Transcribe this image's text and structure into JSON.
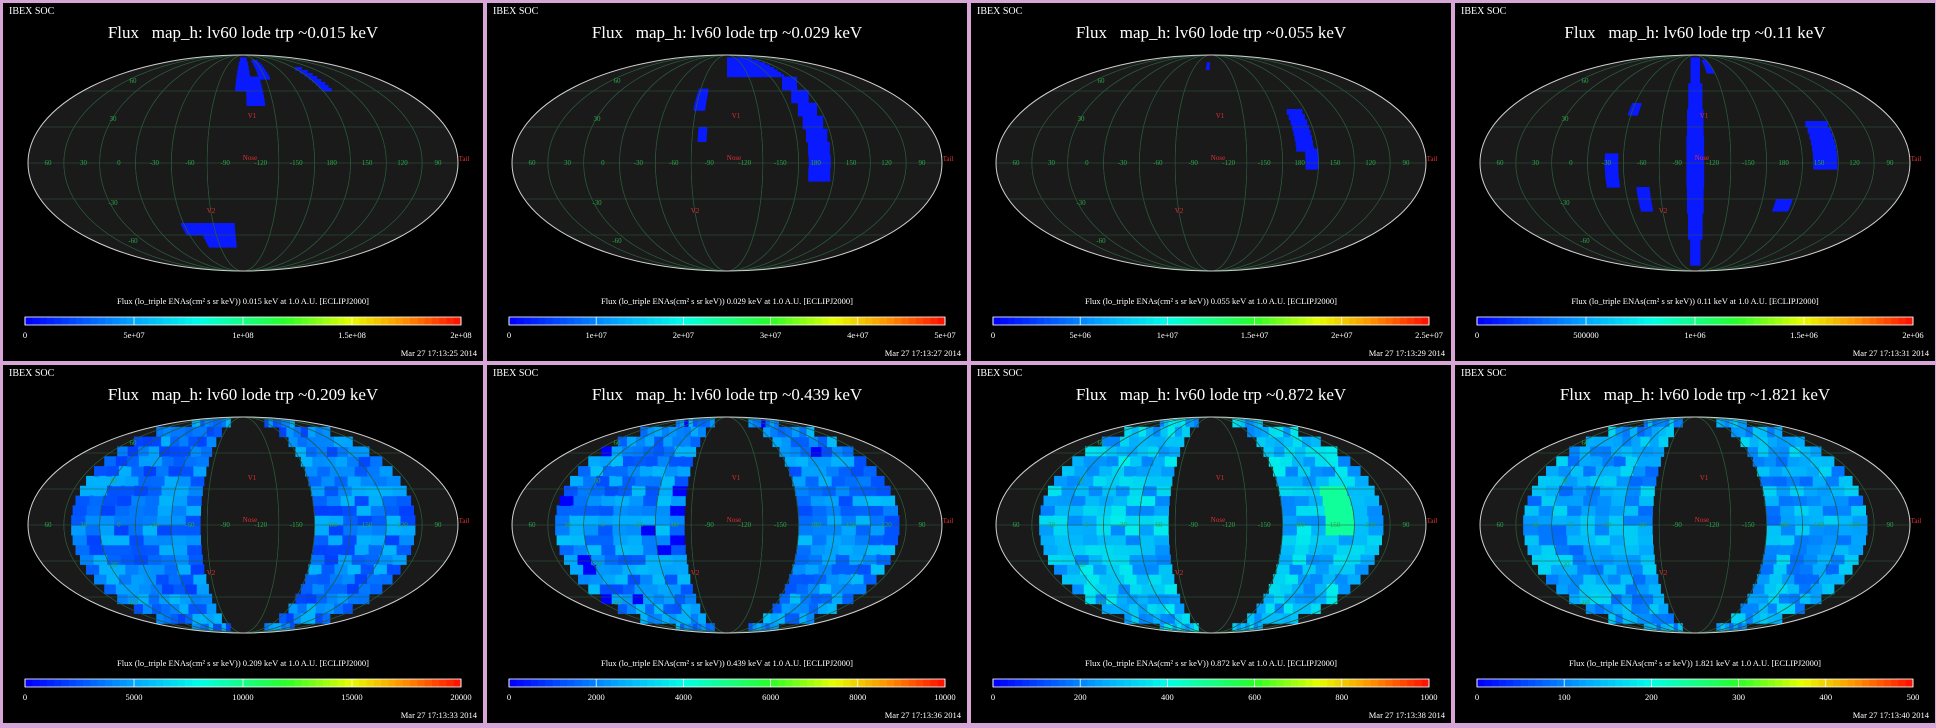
{
  "header_label": "IBEX SOC",
  "colors": {
    "panel_border": "#d7a6d6",
    "background": "#000000",
    "sky": "#1a1a1a",
    "grid": "#2b5a3c",
    "label_green": "#2aa84a",
    "label_red": "#e03030"
  },
  "map_labels": {
    "longitudes": [
      "60",
      "30",
      "0",
      "-30",
      "-60",
      "-90",
      "-120",
      "-150",
      "180",
      "150",
      "120",
      "90"
    ],
    "latitudes": [
      "60",
      "30",
      "-30",
      "-60"
    ],
    "nose": "Nose",
    "tail": "Tail",
    "v1": "V1",
    "v2": "V2"
  },
  "chart_data": [
    {
      "type": "heatmap",
      "title": "Flux   map_h: lv60 lode trp ~0.015 keV",
      "energy": "0.015 keV",
      "colorbar_label": "Flux (lo_triple ENAs(cm² s sr keV)) 0.015 keV at 1.0 A.U. [ECLIPJ2000]",
      "colorbar_range": [
        0,
        200000000.0
      ],
      "tick_labels": [
        "0",
        "5e+07",
        "1e+08",
        "1.5e+08",
        "2e+08"
      ],
      "timestamp": "Mar 27 17:13:25 2014",
      "coverage": "sparse"
    },
    {
      "type": "heatmap",
      "title": "Flux   map_h: lv60 lode trp ~0.029 keV",
      "energy": "0.029 keV",
      "colorbar_label": "Flux (lo_triple ENAs(cm² s sr keV)) 0.029 keV at 1.0 A.U. [ECLIPJ2000]",
      "colorbar_range": [
        0,
        50000000.0
      ],
      "tick_labels": [
        "0",
        "1e+07",
        "2e+07",
        "3e+07",
        "4e+07",
        "5e+07"
      ],
      "timestamp": "Mar 27 17:13:27 2014",
      "coverage": "sparse"
    },
    {
      "type": "heatmap",
      "title": "Flux   map_h: lv60 lode trp ~0.055 keV",
      "energy": "0.055 keV",
      "colorbar_label": "Flux (lo_triple ENAs(cm² s sr keV)) 0.055 keV at 1.0 A.U. [ECLIPJ2000]",
      "colorbar_range": [
        0,
        25000000.0
      ],
      "tick_labels": [
        "0",
        "5e+06",
        "1e+07",
        "1.5e+07",
        "2e+07",
        "2.5e+07"
      ],
      "timestamp": "Mar 27 17:13:29 2014",
      "coverage": "sparse"
    },
    {
      "type": "heatmap",
      "title": "Flux   map_h: lv60 lode trp ~0.11 keV",
      "energy": "0.11 keV",
      "colorbar_label": "Flux (lo_triple ENAs(cm² s sr keV)) 0.11 keV at 1.0 A.U. [ECLIPJ2000]",
      "colorbar_range": [
        0,
        2000000.0
      ],
      "tick_labels": [
        "0",
        "500000",
        "1e+06",
        "1.5e+06",
        "2e+06"
      ],
      "timestamp": "Mar 27 17:13:31 2014",
      "coverage": "sparse"
    },
    {
      "type": "heatmap",
      "title": "Flux   map_h: lv60 lode trp ~0.209 keV",
      "energy": "0.209 keV",
      "colorbar_label": "Flux (lo_triple ENAs(cm² s sr keV)) 0.209 keV at 1.0 A.U. [ECLIPJ2000]",
      "colorbar_range": [
        0,
        20000
      ],
      "tick_labels": [
        "0",
        "5000",
        "10000",
        "15000",
        "20000"
      ],
      "timestamp": "Mar 27 17:13:33 2014",
      "coverage": "full"
    },
    {
      "type": "heatmap",
      "title": "Flux   map_h: lv60 lode trp ~0.439 keV",
      "energy": "0.439 keV",
      "colorbar_label": "Flux (lo_triple ENAs(cm² s sr keV)) 0.439 keV at 1.0 A.U. [ECLIPJ2000]",
      "colorbar_range": [
        0,
        10000
      ],
      "tick_labels": [
        "0",
        "2000",
        "4000",
        "6000",
        "8000",
        "10000"
      ],
      "timestamp": "Mar 27 17:13:36 2014",
      "coverage": "full"
    },
    {
      "type": "heatmap",
      "title": "Flux   map_h: lv60 lode trp ~0.872 keV",
      "energy": "0.872 keV",
      "colorbar_label": "Flux (lo_triple ENAs(cm² s sr keV)) 0.872 keV at 1.0 A.U. [ECLIPJ2000]",
      "colorbar_range": [
        0,
        1000
      ],
      "tick_labels": [
        "0",
        "200",
        "400",
        "600",
        "800",
        "1000"
      ],
      "timestamp": "Mar 27 17:13:38 2014",
      "coverage": "full"
    },
    {
      "type": "heatmap",
      "title": "Flux   map_h: lv60 lode trp ~1.821 keV",
      "energy": "1.821 keV",
      "colorbar_label": "Flux (lo_triple ENAs(cm² s sr keV)) 1.821 keV at 1.0 A.U. [ECLIPJ2000]",
      "colorbar_range": [
        0,
        500
      ],
      "tick_labels": [
        "0",
        "100",
        "200",
        "300",
        "400",
        "500"
      ],
      "timestamp": "Mar 27 17:13:40 2014",
      "coverage": "full"
    }
  ]
}
